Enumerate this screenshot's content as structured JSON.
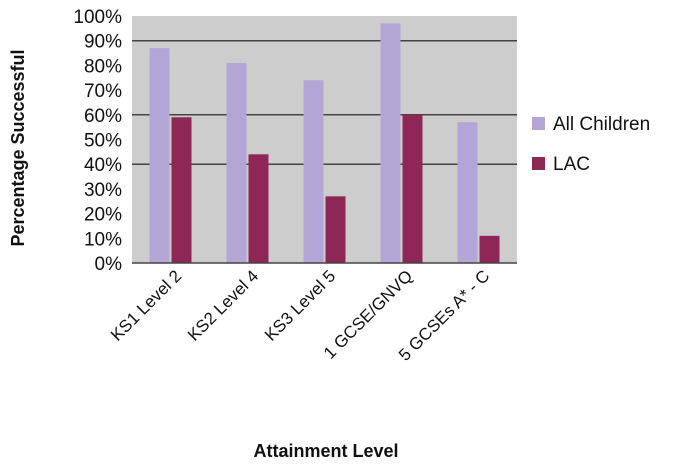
{
  "chart_data": {
    "type": "bar",
    "categories": [
      "KS1 Level 2",
      "KS2 Level 4",
      "KS3 Level 5",
      "1 GCSE/GNVQ",
      "5 GCSEs A* - C"
    ],
    "series": [
      {
        "name": "All Children",
        "values": [
          87,
          81,
          74,
          97,
          57
        ],
        "color": "#b3a6d6"
      },
      {
        "name": "LAC",
        "values": [
          59,
          44,
          27,
          60,
          11
        ],
        "color": "#8e2656"
      }
    ],
    "y_ticks": [
      "0%",
      "10%",
      "20%",
      "30%",
      "40%",
      "50%",
      "60%",
      "70%",
      "80%",
      "90%",
      "100%"
    ],
    "xlabel": "Attainment Level",
    "ylabel": "Percentage Successful",
    "ylim": [
      0,
      100
    ],
    "gridlines_at": [
      40,
      60,
      90
    ],
    "grid": true,
    "legend_position": "right",
    "plot_background": "#cdcdcd",
    "gridline_color": "#444444"
  }
}
